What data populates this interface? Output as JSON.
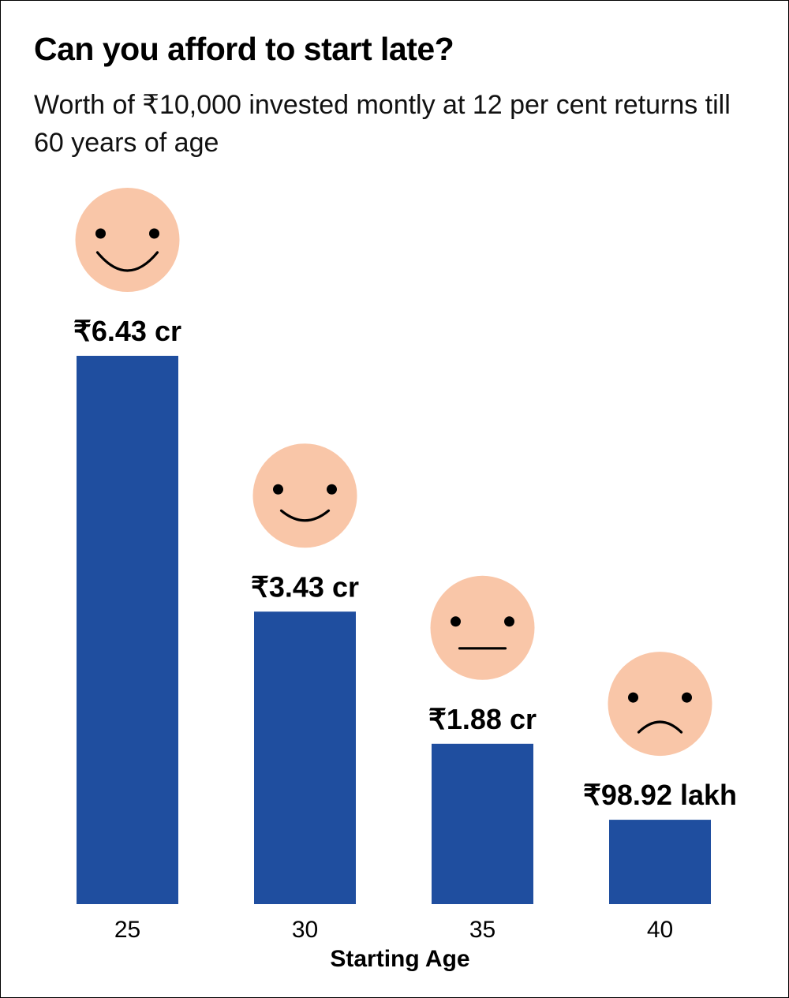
{
  "title": "Can you afford to start late?",
  "subtitle": "Worth of ₹10,000 invested montly at 12 per cent returns till 60 years of age",
  "chart_data": {
    "type": "bar",
    "title": "Can you afford to start late?",
    "subtitle": "Worth of ₹10,000 invested montly at 12 per cent returns till 60 years of age",
    "xlabel": "Starting Age",
    "ylabel": "",
    "unit": "₹ crore",
    "categories": [
      "25",
      "30",
      "35",
      "40"
    ],
    "values": [
      6.43,
      3.43,
      1.88,
      0.9892
    ],
    "data_labels": [
      "₹6.43 cr",
      "₹3.43 cr",
      "₹1.88 cr",
      "₹98.92 lakh"
    ],
    "moods": [
      "big-smile-icon",
      "smile-icon",
      "neutral-face-icon",
      "sad-face-icon"
    ],
    "ylim": [
      0,
      6.43
    ],
    "grid": false,
    "legend": "none"
  },
  "colors": {
    "bar": "#1f4e9f",
    "face": "#f9c6a8",
    "feature": "#000000",
    "text": "#000000"
  }
}
